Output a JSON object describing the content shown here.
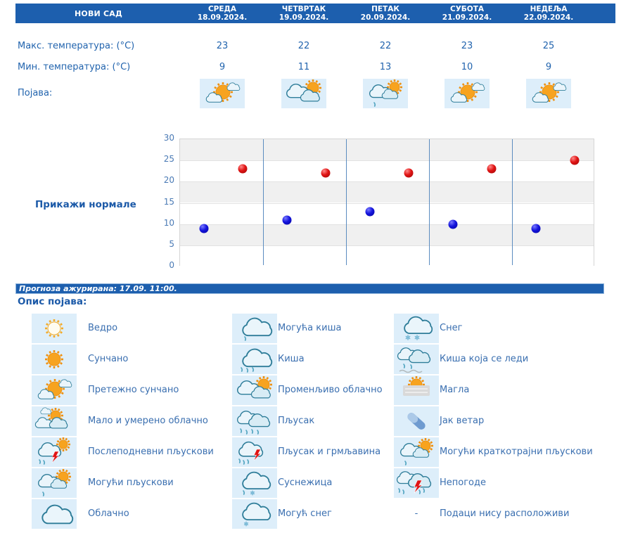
{
  "colors": {
    "header_bg": "#1d5fae",
    "text_blue": "#2264ae",
    "label_blue": "#3a6fb0",
    "icon_cell_bg": "#ddeefa",
    "band_gray": "#f0f0f0",
    "separator_blue": "#5b8cc0",
    "max_dot": "#e01414",
    "min_dot": "#1414dd"
  },
  "forecast_table": {
    "location": "НОВИ САД",
    "days": [
      {
        "name": "СРЕДА",
        "date": "18.09.2024."
      },
      {
        "name": "ЧЕТВРТАК",
        "date": "19.09.2024."
      },
      {
        "name": "ПЕТАК",
        "date": "20.09.2024."
      },
      {
        "name": "СУБОТА",
        "date": "21.09.2024."
      },
      {
        "name": "НЕДЕЉА",
        "date": "22.09.2024."
      }
    ],
    "rows": {
      "max_label": "Макс. температура: (°C)",
      "min_label": "Мин. температура: (°C)",
      "phenomenon_label": "Појава:"
    },
    "max_values": [
      "23",
      "22",
      "22",
      "23",
      "25"
    ],
    "min_values": [
      "9",
      "11",
      "13",
      "10",
      "9"
    ],
    "phenomena": [
      "mostly-sunny",
      "variable-cloudy",
      "possible-showers",
      "mostly-sunny",
      "mostly-sunny"
    ]
  },
  "chart_controls": {
    "show_normals_label": "Прикажи нормале"
  },
  "chart_data": {
    "type": "scatter",
    "categories": [
      "18.09.2024.",
      "19.09.2024.",
      "20.09.2024.",
      "21.09.2024.",
      "22.09.2024."
    ],
    "series": [
      {
        "name": "Макс. температура (°C)",
        "color": "#e01414",
        "values": [
          23,
          22,
          22,
          23,
          25
        ]
      },
      {
        "name": "Мин. температура (°C)",
        "color": "#1414dd",
        "values": [
          9,
          11,
          13,
          10,
          9
        ]
      }
    ],
    "ylim": [
      0,
      30
    ],
    "yticks": [
      0,
      5,
      10,
      15,
      20,
      25,
      30
    ],
    "grid": "horizontal-bands-alternating",
    "legend_position": "none",
    "day_separators": true
  },
  "status_bar": {
    "text": "Прогноза ажурирана:  17.09. 11:00."
  },
  "legend": {
    "title": "Опис појава:",
    "columns": [
      [
        {
          "icon": "clear",
          "label": "Ведро"
        },
        {
          "icon": "sunny",
          "label": "Сунчано"
        },
        {
          "icon": "mostly-sunny",
          "label": "Претежно сунчано"
        },
        {
          "icon": "partly-cloudy",
          "label": "Мало и умерено облачно"
        },
        {
          "icon": "afternoon-showers",
          "label": "Послеподневни пљускови"
        },
        {
          "icon": "possible-showers",
          "label": "Могући пљускови"
        },
        {
          "icon": "cloudy",
          "label": "Облачно"
        }
      ],
      [
        {
          "icon": "possible-rain",
          "label": "Могућа киша"
        },
        {
          "icon": "rain",
          "label": "Киша"
        },
        {
          "icon": "variable-cloudy",
          "label": "Променљиво облачно"
        },
        {
          "icon": "shower",
          "label": "Пљусак"
        },
        {
          "icon": "shower-thunder",
          "label": "Пљусак и грмљавина"
        },
        {
          "icon": "sleet",
          "label": "Суснежица"
        },
        {
          "icon": "possible-snow",
          "label": "Могућ снег"
        }
      ],
      [
        {
          "icon": "snow",
          "label": "Снег"
        },
        {
          "icon": "freezing-rain",
          "label": "Киша која се леди"
        },
        {
          "icon": "fog",
          "label": "Магла"
        },
        {
          "icon": "strong-wind",
          "label": "Јак ветар"
        },
        {
          "icon": "possible-brief-showers",
          "label": "Могући краткотрајни пљускови"
        },
        {
          "icon": "storms",
          "label": "Непогоде"
        },
        {
          "icon": "none",
          "dash": "-",
          "label": "Подаци нису расположиви"
        }
      ]
    ]
  }
}
